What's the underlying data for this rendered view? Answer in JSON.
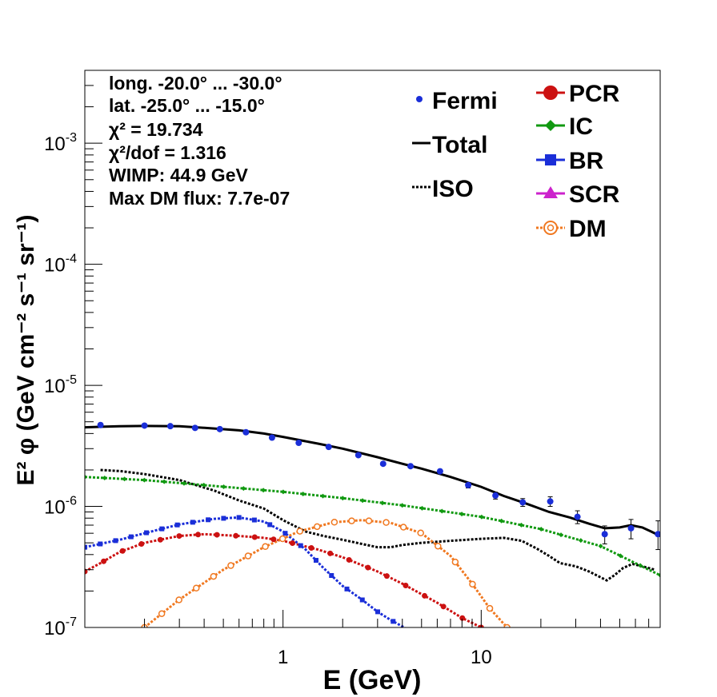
{
  "chart_data": {
    "type": "scatter",
    "xlabel": "E (GeV)",
    "ylabel": "E² φ (GeV cm⁻² s⁻¹ sr⁻¹)",
    "xscale": "log",
    "yscale": "log",
    "xlim": [
      0.1,
      80
    ],
    "ylim": [
      1e-07,
      0.004
    ],
    "x_tick_labels": [
      {
        "value": 1,
        "label": "1"
      },
      {
        "value": 10,
        "label": "10"
      }
    ],
    "y_tick_labels": [
      {
        "value": 1e-07,
        "base": "10",
        "exp": "-7"
      },
      {
        "value": 1e-06,
        "base": "10",
        "exp": "-6"
      },
      {
        "value": 1e-05,
        "base": "10",
        "exp": "-5"
      },
      {
        "value": 0.0001,
        "base": "10",
        "exp": "-4"
      },
      {
        "value": 0.001,
        "base": "10",
        "exp": "-3"
      }
    ],
    "info": [
      "long. -20.0° ... -30.0°",
      "lat. -25.0° ... -15.0°",
      "χ² = 19.734",
      "χ²/dof = 1.316",
      "WIMP: 44.9 GeV",
      "Max DM flux: 7.7e-07"
    ],
    "legend_position": "top-right",
    "legend": [
      {
        "name": "Fermi",
        "color": "#1a2ed8",
        "marker": "dot"
      },
      {
        "name": "Total",
        "color": "#000000",
        "marker": "line"
      },
      {
        "name": "ISO",
        "color": "#000000",
        "marker": "dotted-line"
      },
      {
        "name": "PCR",
        "color": "#cc1111",
        "marker": "circle"
      },
      {
        "name": "IC",
        "color": "#119911",
        "marker": "diamond"
      },
      {
        "name": "BR",
        "color": "#1a2ed8",
        "marker": "square"
      },
      {
        "name": "SCR",
        "color": "#cc22cc",
        "marker": "triangle"
      },
      {
        "name": "DM",
        "color": "#f07820",
        "marker": "open-circle"
      }
    ],
    "series": [
      {
        "name": "Fermi",
        "kind": "points",
        "color": "#1a2ed8",
        "x": [
          0.12,
          0.2,
          0.27,
          0.36,
          0.48,
          0.65,
          0.88,
          1.2,
          1.7,
          2.4,
          3.2,
          4.4,
          6.2,
          8.6,
          11.8,
          16.2,
          22.3,
          30.6,
          42,
          57,
          78
        ],
        "y": [
          4.7e-06,
          4.65e-06,
          4.6e-06,
          4.45e-06,
          4.35e-06,
          4.1e-06,
          3.7e-06,
          3.35e-06,
          3.1e-06,
          2.65e-06,
          2.25e-06,
          2.15e-06,
          1.95e-06,
          1.5e-06,
          1.23e-06,
          1.08e-06,
          1.1e-06,
          8.2e-07,
          5.9e-07,
          6.6e-07,
          5.9e-07
        ],
        "err_low": [
          0,
          0,
          0,
          0,
          0,
          0,
          0,
          0,
          0,
          0,
          0,
          0,
          0,
          8e-08,
          8e-08,
          8e-08,
          1e-07,
          1e-07,
          1e-07,
          1.2e-07,
          1.5e-07
        ],
        "err_high": [
          0,
          0,
          0,
          0,
          0,
          0,
          0,
          0,
          0,
          0,
          0,
          0,
          0,
          8e-08,
          8e-08,
          8e-08,
          1e-07,
          1e-07,
          1e-07,
          1.2e-07,
          1.7e-07
        ]
      },
      {
        "name": "Total",
        "kind": "line",
        "color": "#000000",
        "x": [
          0.1,
          0.15,
          0.2,
          0.3,
          0.45,
          0.6,
          0.8,
          1,
          1.5,
          2,
          3,
          4,
          5,
          7,
          10,
          13,
          17,
          22,
          28,
          35,
          42,
          50,
          57,
          65,
          72,
          80
        ],
        "y": [
          4.5e-06,
          4.6e-06,
          4.62e-06,
          4.6e-06,
          4.4e-06,
          4.25e-06,
          4e-06,
          3.75e-06,
          3.3e-06,
          3e-06,
          2.55e-06,
          2.25e-06,
          2.05e-06,
          1.75e-06,
          1.45e-06,
          1.22e-06,
          1.05e-06,
          9e-07,
          8.1e-07,
          7.2e-07,
          6.6e-07,
          6.7e-07,
          7e-07,
          6.7e-07,
          6.2e-07,
          5.7e-07
        ]
      },
      {
        "name": "ISO",
        "kind": "dotted",
        "color": "#000000",
        "x": [
          0.12,
          0.15,
          0.2,
          0.3,
          0.45,
          0.6,
          0.8,
          1,
          1.3,
          1.6,
          2,
          2.5,
          3,
          3.5,
          4,
          5,
          7,
          10,
          13,
          16,
          19,
          22,
          25,
          30,
          35,
          40,
          43,
          47,
          52,
          58,
          65,
          75
        ],
        "y": [
          2e-06,
          1.96e-06,
          1.85e-06,
          1.65e-06,
          1.35e-06,
          1.12e-06,
          9.6e-07,
          7.7e-07,
          6.2e-07,
          5.7e-07,
          5.3e-07,
          4.9e-07,
          4.6e-07,
          4.6e-07,
          4.8e-07,
          5e-07,
          5.2e-07,
          5.4e-07,
          5.5e-07,
          5.2e-07,
          4.5e-07,
          3.9e-07,
          3.4e-07,
          3.2e-07,
          2.9e-07,
          2.6e-07,
          2.45e-07,
          2.7e-07,
          3.1e-07,
          3.35e-07,
          3.2e-07,
          3e-07
        ]
      },
      {
        "name": "IC",
        "kind": "dotted-markers",
        "color": "#119911",
        "x": [
          0.1,
          0.2,
          0.4,
          1,
          2,
          4,
          10,
          20,
          40,
          80
        ],
        "y": [
          1.75e-06,
          1.65e-06,
          1.5e-06,
          1.32e-06,
          1.17e-06,
          1.02e-06,
          8.2e-07,
          6.5e-07,
          4.7e-07,
          2.7e-07
        ]
      },
      {
        "name": "BR",
        "kind": "dotted-markers",
        "color": "#1a2ed8",
        "x": [
          0.1,
          0.15,
          0.2,
          0.3,
          0.45,
          0.6,
          0.8,
          1,
          1.3,
          1.6,
          2,
          2.5,
          3,
          3.5,
          4,
          4.3
        ],
        "y": [
          4.6e-07,
          5.3e-07,
          6e-07,
          7.1e-07,
          7.9e-07,
          8.1e-07,
          7.5e-07,
          6.2e-07,
          4.4e-07,
          3.1e-07,
          2.2e-07,
          1.7e-07,
          1.35e-07,
          1.15e-07,
          1.02e-07,
          9.5e-08
        ]
      },
      {
        "name": "PCR",
        "kind": "dotted-markers",
        "color": "#cc1111",
        "x": [
          0.1,
          0.12,
          0.15,
          0.2,
          0.3,
          0.4,
          0.6,
          0.8,
          1,
          1.5,
          2,
          3,
          4,
          6,
          8,
          10
        ],
        "y": [
          2.9e-07,
          3.4e-07,
          4.2e-07,
          5e-07,
          5.7e-07,
          5.9e-07,
          5.7e-07,
          5.5e-07,
          5.2e-07,
          4.4e-07,
          3.8e-07,
          2.9e-07,
          2.3e-07,
          1.6e-07,
          1.2e-07,
          1e-07
        ]
      },
      {
        "name": "DM",
        "kind": "dotted-markers",
        "color": "#f07820",
        "x": [
          0.2,
          0.3,
          0.5,
          0.8,
          1.2,
          1.8,
          2.5,
          3.5,
          5,
          7,
          9,
          11,
          13.5
        ],
        "y": [
          1e-07,
          1.7e-07,
          3e-07,
          4.6e-07,
          6.2e-07,
          7.4e-07,
          7.7e-07,
          7.3e-07,
          6e-07,
          3.9e-07,
          2.3e-07,
          1.45e-07,
          1e-07
        ]
      }
    ]
  }
}
